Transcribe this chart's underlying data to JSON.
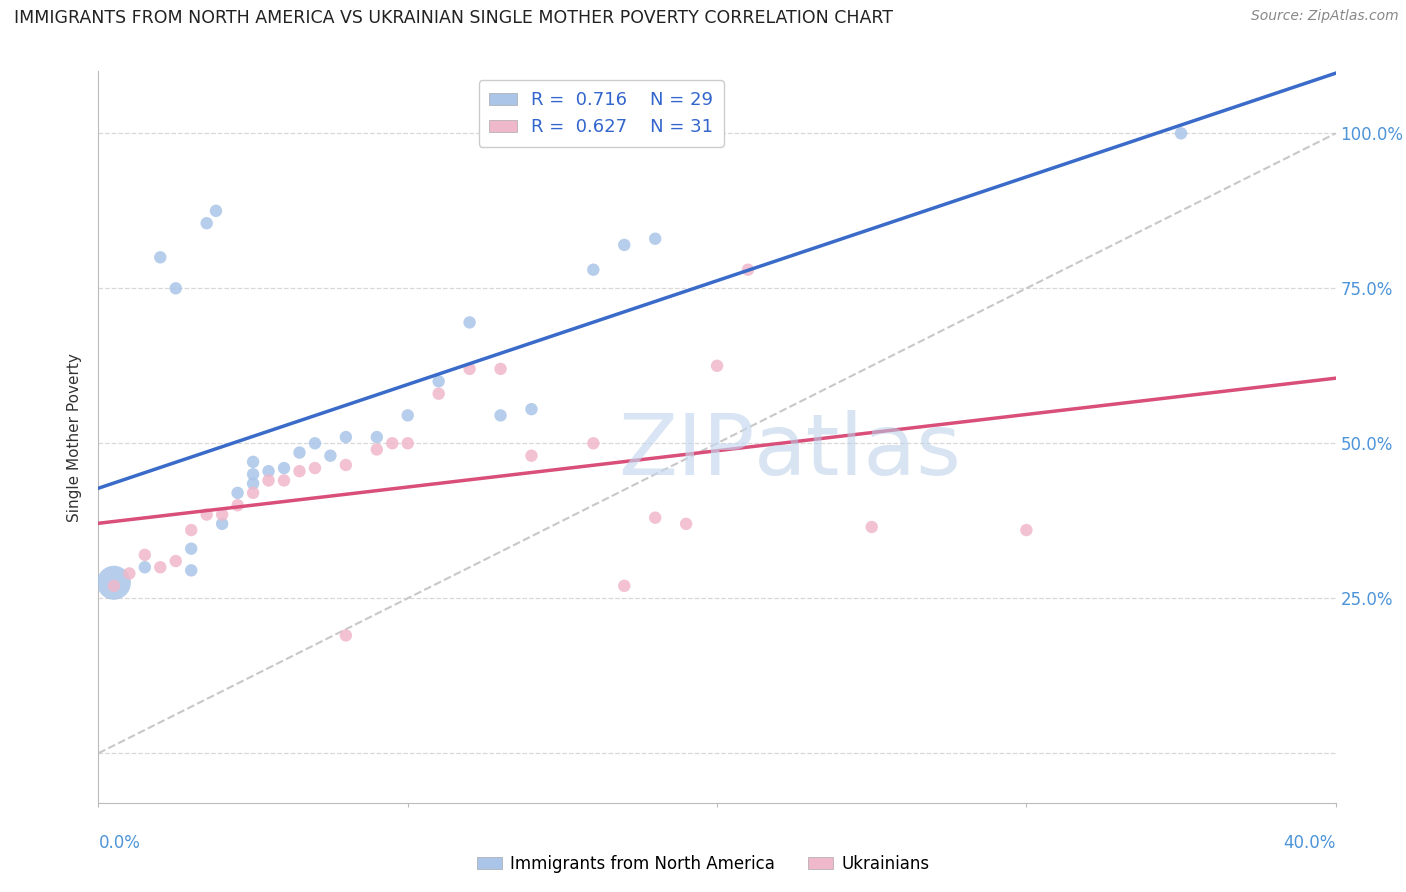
{
  "title": "IMMIGRANTS FROM NORTH AMERICA VS UKRAINIAN SINGLE MOTHER POVERTY CORRELATION CHART",
  "source": "Source: ZipAtlas.com",
  "ylabel": "Single Mother Poverty",
  "watermark_zip": "ZIP",
  "watermark_atlas": "atlas",
  "legend_r_blue": "R =  0.716",
  "legend_n_blue": "N = 29",
  "legend_r_pink": "R =  0.627",
  "legend_n_pink": "N = 31",
  "blue_color": "#aac5e8",
  "pink_color": "#f0b8cb",
  "blue_line_color": "#3a6bc9",
  "pink_line_color": "#d94f7a",
  "ref_line_color": "#c8c8c8",
  "blue_scatter": [
    [
      0.5,
      27.5
    ],
    [
      1.5,
      30.0
    ],
    [
      2.0,
      80.0
    ],
    [
      2.5,
      75.0
    ],
    [
      3.0,
      29.5
    ],
    [
      3.0,
      33.0
    ],
    [
      3.5,
      85.5
    ],
    [
      3.8,
      87.5
    ],
    [
      4.0,
      37.0
    ],
    [
      4.5,
      42.0
    ],
    [
      5.0,
      45.0
    ],
    [
      5.0,
      47.0
    ],
    [
      5.0,
      43.5
    ],
    [
      5.5,
      45.5
    ],
    [
      6.0,
      46.0
    ],
    [
      6.5,
      48.5
    ],
    [
      7.0,
      50.0
    ],
    [
      7.5,
      48.0
    ],
    [
      8.0,
      51.0
    ],
    [
      9.0,
      51.0
    ],
    [
      10.0,
      54.5
    ],
    [
      11.0,
      60.0
    ],
    [
      12.0,
      69.5
    ],
    [
      13.0,
      54.5
    ],
    [
      14.0,
      55.5
    ],
    [
      16.0,
      78.0
    ],
    [
      17.0,
      82.0
    ],
    [
      18.0,
      83.0
    ],
    [
      35.0,
      100.0
    ]
  ],
  "pink_scatter": [
    [
      0.5,
      27.0
    ],
    [
      1.0,
      29.0
    ],
    [
      1.5,
      32.0
    ],
    [
      2.0,
      30.0
    ],
    [
      2.5,
      31.0
    ],
    [
      3.0,
      36.0
    ],
    [
      3.5,
      38.5
    ],
    [
      4.0,
      38.5
    ],
    [
      4.5,
      40.0
    ],
    [
      5.0,
      42.0
    ],
    [
      5.5,
      44.0
    ],
    [
      6.0,
      44.0
    ],
    [
      6.5,
      45.5
    ],
    [
      7.0,
      46.0
    ],
    [
      8.0,
      46.5
    ],
    [
      9.0,
      49.0
    ],
    [
      9.5,
      50.0
    ],
    [
      10.0,
      50.0
    ],
    [
      11.0,
      58.0
    ],
    [
      12.0,
      62.0
    ],
    [
      13.0,
      62.0
    ],
    [
      14.0,
      48.0
    ],
    [
      16.0,
      50.0
    ],
    [
      17.0,
      27.0
    ],
    [
      18.0,
      38.0
    ],
    [
      19.0,
      37.0
    ],
    [
      20.0,
      62.5
    ],
    [
      21.0,
      78.0
    ],
    [
      8.0,
      19.0
    ],
    [
      25.0,
      36.5
    ],
    [
      30.0,
      36.0
    ]
  ],
  "blue_sizes": [
    600,
    80,
    80,
    80,
    80,
    80,
    80,
    80,
    80,
    80,
    80,
    80,
    80,
    80,
    80,
    80,
    80,
    80,
    80,
    80,
    80,
    80,
    80,
    80,
    80,
    80,
    80,
    80,
    80
  ],
  "pink_sizes": [
    80,
    80,
    80,
    80,
    80,
    80,
    80,
    80,
    80,
    80,
    80,
    80,
    80,
    80,
    80,
    80,
    80,
    80,
    80,
    80,
    80,
    80,
    80,
    80,
    80,
    80,
    80,
    80,
    80,
    80,
    80
  ],
  "xlim": [
    0,
    40
  ],
  "ylim": [
    -8,
    110
  ],
  "ytick_vals": [
    0,
    25,
    50,
    75,
    100
  ],
  "ytick_labels": [
    "",
    "25.0%",
    "50.0%",
    "75.0%",
    "100.0%"
  ],
  "grid_color": "#d8d8d8",
  "spine_color": "#bbbbbb",
  "blue_line_params": [
    0.42,
    0.85
  ],
  "pink_line_params": [
    0.15,
    0.7
  ]
}
